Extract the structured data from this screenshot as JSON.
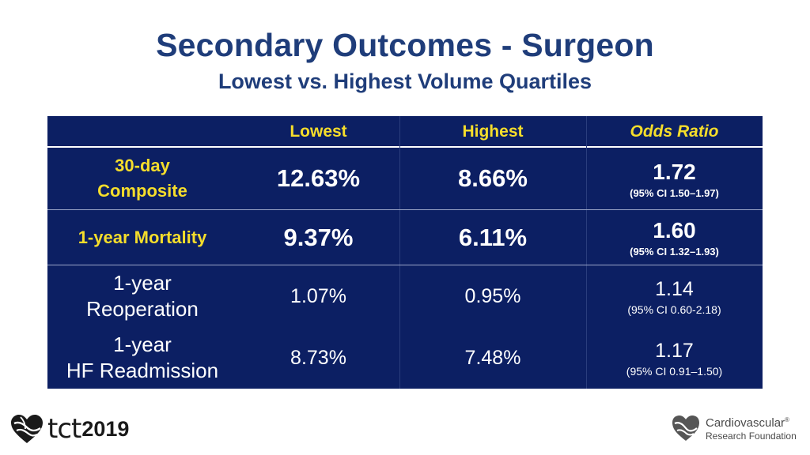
{
  "title": "Secondary Outcomes - Surgeon",
  "subtitle": "Lowest vs. Highest Volume Quartiles",
  "table": {
    "headers": {
      "lowest": "Lowest",
      "highest": "Highest",
      "odds_ratio": "Odds Ratio"
    },
    "rows": [
      {
        "label_line1": "30-day",
        "label_line2": "Composite",
        "lowest": "12.63%",
        "highest": "8.66%",
        "odds_ratio": "1.72",
        "ci": "(95% CI 1.50–1.97)"
      },
      {
        "label": "1-year Mortality",
        "lowest": "9.37%",
        "highest": "6.11%",
        "odds_ratio": "1.60",
        "ci": "(95% CI 1.32–1.93)"
      },
      {
        "label_line1": "1-year",
        "label_line2": "Reoperation",
        "lowest": "1.07%",
        "highest": "0.95%",
        "odds_ratio": "1.14",
        "ci": "(95% CI 0.60-2.18)"
      },
      {
        "label_line1": "1-year",
        "label_line2": "HF Readmission",
        "lowest": "8.73%",
        "highest": "7.48%",
        "odds_ratio": "1.17",
        "ci": "(95% CI 0.91–1.50)"
      }
    ]
  },
  "footer": {
    "left_logo_text": "tct",
    "left_logo_year": "2019",
    "left_logo_icon": "heart-globe-icon",
    "right_logo_line1": "Cardiovascular",
    "right_logo_reg": "®",
    "right_logo_line2": "Research Foundation",
    "right_logo_icon": "heart-logo-icon"
  },
  "colors": {
    "title": "#1f3d7a",
    "table_background": "#0c1f63",
    "highlight_text": "#f5dd2b",
    "body_text": "#ffffff"
  }
}
